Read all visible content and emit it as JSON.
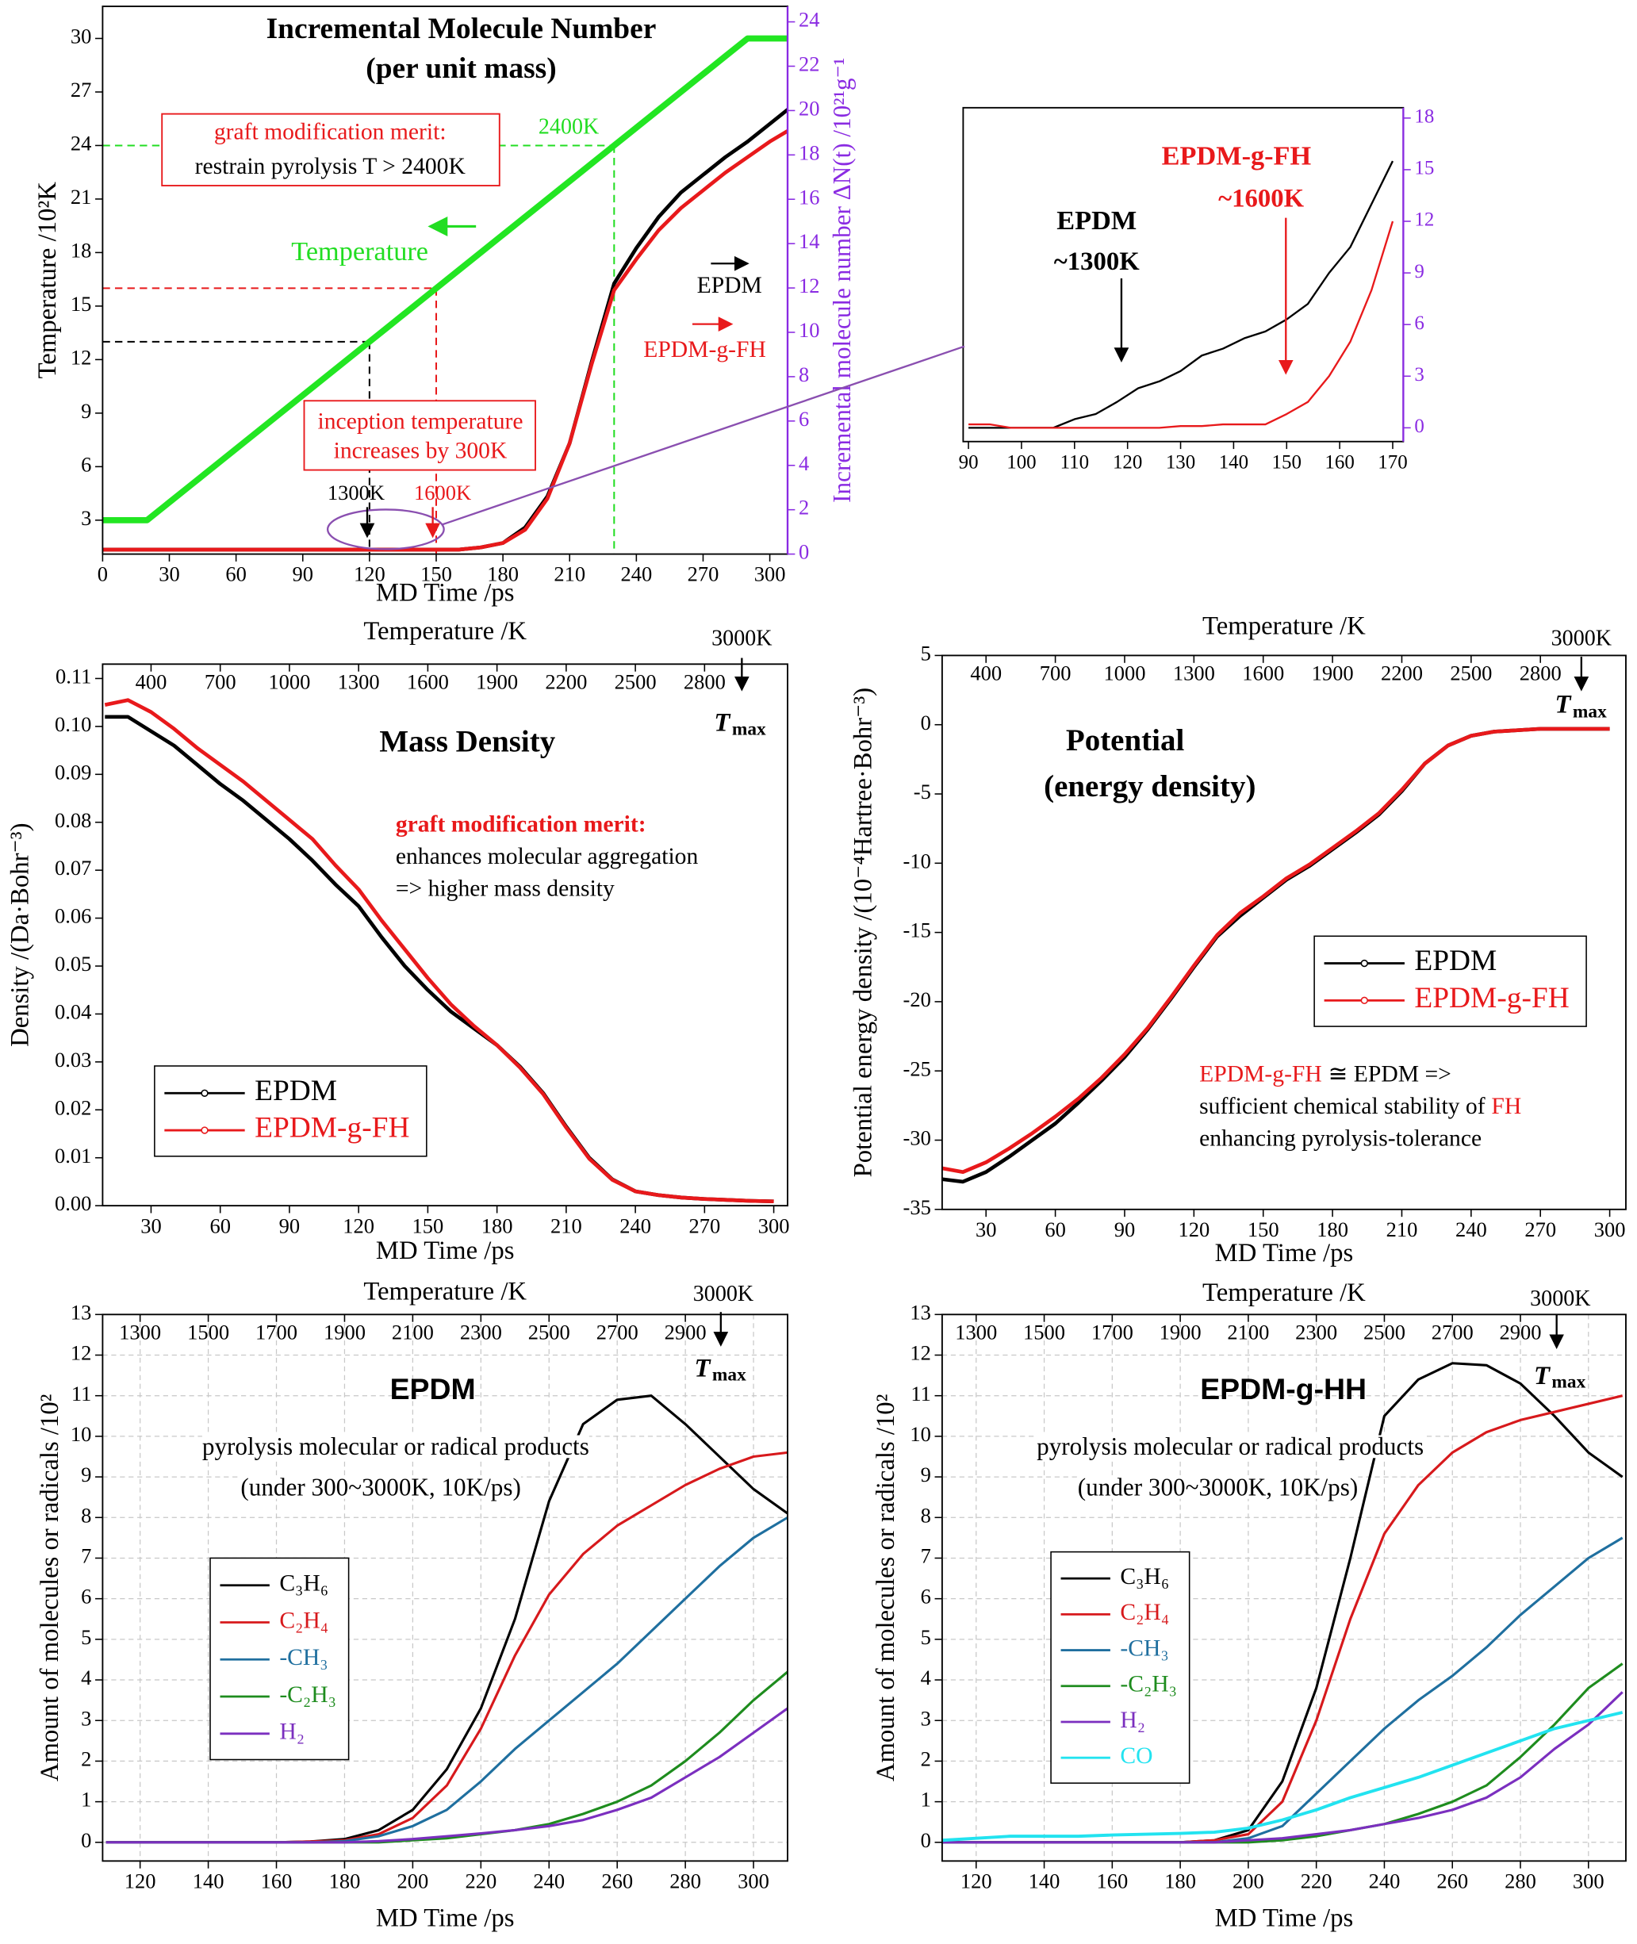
{
  "chart_data": [
    {
      "type": "line",
      "title": "Incremental Molecule Number",
      "subtitle": "(per unit mass)",
      "xlabel": "MD Time /ps",
      "ylabel": "Temperature /10²K",
      "y2label": "Incremental molecule number ΔN(t) /10²¹g⁻¹",
      "y2_color": "#8a2be2",
      "x": [
        0,
        10,
        20,
        30,
        40,
        50,
        60,
        70,
        80,
        90,
        100,
        110,
        120,
        130,
        140,
        150,
        160,
        170,
        180,
        190,
        200,
        210,
        220,
        230,
        240,
        250,
        260,
        270,
        280,
        290,
        300,
        310
      ],
      "xlim": [
        0,
        308
      ],
      "xticks": [
        0,
        30,
        60,
        90,
        120,
        150,
        180,
        210,
        240,
        270,
        300
      ],
      "ylim": [
        1.1,
        31.8
      ],
      "yticks": [
        3,
        6,
        9,
        12,
        15,
        18,
        21,
        24,
        27,
        30
      ],
      "y2lim": [
        0,
        24.7
      ],
      "y2ticks": [
        0,
        2,
        4,
        6,
        8,
        10,
        12,
        14,
        16,
        18,
        20,
        22,
        24
      ],
      "series": [
        {
          "name": "Temperature",
          "color": "#22e622",
          "width": 5,
          "values": [
            3,
            3,
            3,
            4,
            5,
            6,
            7,
            8,
            9,
            10,
            11,
            12,
            13,
            14,
            15,
            16,
            17,
            18,
            19,
            20,
            21,
            22,
            23,
            24,
            25,
            26,
            27,
            28,
            29,
            30,
            30,
            30
          ]
        },
        {
          "name": "EPDM",
          "color": "#000000",
          "width": 3,
          "axis": "y2",
          "values": [
            0.2,
            0.2,
            0.2,
            0.2,
            0.2,
            0.2,
            0.2,
            0.2,
            0.2,
            0.2,
            0.2,
            0.2,
            0.2,
            0.2,
            0.2,
            0.2,
            0.2,
            0.3,
            0.5,
            1.2,
            2.6,
            5.0,
            8.7,
            12.2,
            13.8,
            15.2,
            16.3,
            17.1,
            17.9,
            18.6,
            19.4,
            20.2
          ]
        },
        {
          "name": "EPDM-g-FH",
          "color": "#e8191b",
          "width": 3,
          "axis": "y2",
          "values": [
            0.2,
            0.2,
            0.2,
            0.2,
            0.2,
            0.2,
            0.2,
            0.2,
            0.2,
            0.2,
            0.2,
            0.2,
            0.2,
            0.2,
            0.2,
            0.2,
            0.2,
            0.3,
            0.5,
            1.1,
            2.5,
            5.0,
            8.6,
            11.9,
            13.3,
            14.6,
            15.6,
            16.4,
            17.2,
            17.9,
            18.6,
            19.2
          ]
        }
      ],
      "reference_lines": [
        {
          "x": 230,
          "y": 24,
          "color": "#22dd22"
        },
        {
          "x": 120,
          "y": 13,
          "color": "#000000"
        },
        {
          "x": 150,
          "y": 16,
          "color": "#e8191b"
        }
      ],
      "annotations": [
        "graft modification merit:",
        "restrain pyrolysis T > 2400K",
        "2400K",
        "Temperature",
        "EPDM",
        "EPDM-g-FH",
        "inception temperature",
        "increases by 300K",
        "1300K",
        "1600K"
      ]
    },
    {
      "type": "line",
      "y2_color": "#8a2be2",
      "x": [
        90,
        94,
        98,
        102,
        106,
        110,
        114,
        118,
        122,
        126,
        130,
        134,
        138,
        142,
        146,
        150,
        154,
        158,
        162,
        166,
        170
      ],
      "xlim": [
        89,
        172
      ],
      "xticks": [
        90,
        100,
        110,
        120,
        130,
        140,
        150,
        160,
        170
      ],
      "y2lim": [
        -0.8,
        18.6
      ],
      "y2ticks": [
        0,
        3,
        6,
        9,
        12,
        15,
        18
      ],
      "series": [
        {
          "name": "EPDM",
          "color": "#000000",
          "width": 1.5,
          "axis": "y2",
          "values": [
            0,
            0,
            0,
            0,
            0,
            0.5,
            0.8,
            1.5,
            2.3,
            2.7,
            3.3,
            4.2,
            4.6,
            5.2,
            5.6,
            6.3,
            7.2,
            9.0,
            10.5,
            13.0,
            15.5
          ]
        },
        {
          "name": "EPDM-g-FH",
          "color": "#e8191b",
          "width": 1.5,
          "axis": "y2",
          "values": [
            0.2,
            0.2,
            0,
            0,
            0,
            0,
            0,
            0,
            0,
            0,
            0.1,
            0.1,
            0.2,
            0.2,
            0.2,
            0.8,
            1.5,
            3.0,
            5.0,
            8.0,
            12.0
          ]
        }
      ],
      "annotations": [
        "EPDM",
        "~1300K",
        "EPDM-g-FH",
        "~1600K"
      ]
    },
    {
      "type": "line",
      "title": "Mass Density",
      "xlabel": "MD Time /ps",
      "x2label": "Temperature /K",
      "ylabel": "Density /(Da·Bohr⁻³)",
      "x": [
        10,
        20,
        30,
        40,
        50,
        60,
        70,
        80,
        90,
        100,
        110,
        120,
        130,
        140,
        150,
        160,
        170,
        180,
        190,
        200,
        210,
        220,
        230,
        240,
        250,
        260,
        270,
        280,
        290,
        300
      ],
      "xlim": [
        9,
        306
      ],
      "xticks": [
        30,
        60,
        90,
        120,
        150,
        180,
        210,
        240,
        270,
        300
      ],
      "x2lim": [
        190,
        3160
      ],
      "x2ticks": [
        400,
        700,
        1000,
        1300,
        1600,
        1900,
        2200,
        2500,
        2800
      ],
      "ylim": [
        0,
        0.113
      ],
      "yticks": [
        {
          "value": 0,
          "label": "0.00"
        },
        0.01,
        0.02,
        0.03,
        0.04,
        0.05,
        0.06,
        0.07,
        0.08,
        0.09,
        {
          "value": 0.1,
          "label": "0.10"
        },
        0.11
      ],
      "legend": "lower left",
      "marker": "circle",
      "series": [
        {
          "name": "EPDM",
          "color": "#000000",
          "width": 3,
          "values": [
            0.102,
            0.102,
            0.099,
            0.096,
            0.092,
            0.088,
            0.0845,
            0.0805,
            0.0765,
            0.072,
            0.067,
            0.0625,
            0.056,
            0.05,
            0.045,
            0.0405,
            0.037,
            0.0335,
            0.029,
            0.0235,
            0.0165,
            0.01,
            0.0055,
            0.003,
            0.0022,
            0.0017,
            0.0014,
            0.0012,
            0.001,
            0.0009
          ]
        },
        {
          "name": "EPDM-g-FH",
          "color": "#e8191b",
          "width": 3,
          "values": [
            0.1045,
            0.1055,
            0.103,
            0.0995,
            0.0955,
            0.092,
            0.0885,
            0.0845,
            0.0805,
            0.0765,
            0.071,
            0.066,
            0.0595,
            0.0535,
            0.0475,
            0.042,
            0.0375,
            0.0335,
            0.0288,
            0.0233,
            0.0163,
            0.0098,
            0.0054,
            0.003,
            0.0022,
            0.0017,
            0.0014,
            0.0012,
            0.001,
            0.0009
          ]
        }
      ],
      "annotations": [
        "graft modification merit:",
        "enhances molecular aggregation",
        "=> higher mass density",
        "3000K",
        "T",
        "max"
      ]
    },
    {
      "type": "line",
      "title": "Potential",
      "subtitle": "(energy density)",
      "xlabel": "MD Time /ps",
      "x2label": "Temperature /K",
      "ylabel": "Potential energy density /(10⁻⁴Hartree·Bohr⁻³)",
      "x": [
        10,
        20,
        30,
        40,
        50,
        60,
        70,
        80,
        90,
        100,
        110,
        120,
        130,
        140,
        150,
        160,
        170,
        180,
        190,
        200,
        210,
        220,
        230,
        240,
        250,
        260,
        270,
        280,
        290,
        300
      ],
      "xlim": [
        11,
        307
      ],
      "xticks": [
        30,
        60,
        90,
        120,
        150,
        180,
        210,
        240,
        270,
        300
      ],
      "x2lim": [
        210,
        3170
      ],
      "x2ticks": [
        400,
        700,
        1000,
        1300,
        1600,
        1900,
        2200,
        2500,
        2800
      ],
      "ylim": [
        -35,
        5
      ],
      "yticks": [
        5,
        0,
        -5,
        -10,
        -15,
        -20,
        -25,
        -30,
        -35
      ],
      "legend": "center right",
      "marker": "circle",
      "series": [
        {
          "name": "EPDM",
          "color": "#000000",
          "width": 3,
          "values": [
            -32.8,
            -33.0,
            -32.3,
            -31.2,
            -30.0,
            -28.8,
            -27.3,
            -25.7,
            -24.0,
            -22.0,
            -19.8,
            -17.5,
            -15.3,
            -13.8,
            -12.5,
            -11.2,
            -10.2,
            -9.0,
            -7.8,
            -6.5,
            -4.8,
            -2.8,
            -1.5,
            -0.8,
            -0.5,
            -0.4,
            -0.3,
            -0.3,
            -0.3,
            -0.3
          ]
        },
        {
          "name": "EPDM-g-FH",
          "color": "#e8191b",
          "width": 3,
          "values": [
            -32.0,
            -32.3,
            -31.6,
            -30.6,
            -29.5,
            -28.3,
            -27.0,
            -25.5,
            -23.8,
            -21.9,
            -19.7,
            -17.4,
            -15.2,
            -13.6,
            -12.4,
            -11.1,
            -10.1,
            -8.9,
            -7.7,
            -6.4,
            -4.7,
            -2.8,
            -1.5,
            -0.8,
            -0.5,
            -0.4,
            -0.3,
            -0.3,
            -0.3,
            -0.3
          ]
        }
      ],
      "annotations": [
        "EPDM-g-FH",
        "≅ EPDM =>",
        "sufficient chemical stability of",
        "FH",
        "enhancing pyrolysis-tolerance",
        "3000K",
        "T",
        "max"
      ]
    },
    {
      "type": "line",
      "title": "EPDM",
      "xlabel": "MD Time /ps",
      "x2label": "Temperature /K",
      "ylabel": "Amount of molecules or radicals /10²",
      "x": [
        110,
        120,
        130,
        140,
        150,
        160,
        170,
        180,
        190,
        200,
        210,
        220,
        230,
        240,
        250,
        260,
        270,
        280,
        290,
        300,
        310
      ],
      "xlim": [
        109,
        310
      ],
      "xticks": [
        120,
        140,
        160,
        180,
        200,
        220,
        240,
        260,
        280,
        300
      ],
      "x2lim": [
        1190,
        3200
      ],
      "x2ticks": [
        1300,
        1500,
        1700,
        1900,
        2100,
        2300,
        2500,
        2700,
        2900
      ],
      "ylim": [
        -0.46,
        13
      ],
      "yticks": [
        0,
        1,
        2,
        3,
        4,
        5,
        6,
        7,
        8,
        9,
        10,
        11,
        12,
        13
      ],
      "grid": true,
      "legend": "center left",
      "series": [
        {
          "name": "C₃H₆",
          "color": "#000000",
          "width": 2,
          "values": [
            0,
            0,
            0,
            0,
            0,
            0,
            0.02,
            0.08,
            0.3,
            0.8,
            1.8,
            3.3,
            5.5,
            8.4,
            10.3,
            10.9,
            11.0,
            10.3,
            9.5,
            8.7,
            8.1
          ]
        },
        {
          "name": "C₂H₄",
          "color": "#d7191c",
          "width": 2,
          "values": [
            0,
            0,
            0,
            0,
            0,
            0,
            0.02,
            0.05,
            0.2,
            0.6,
            1.4,
            2.8,
            4.6,
            6.1,
            7.1,
            7.8,
            8.3,
            8.8,
            9.2,
            9.5,
            9.6
          ]
        },
        {
          "name": "-CH₃",
          "color": "#1f6f9f",
          "width": 2,
          "values": [
            0,
            0,
            0,
            0,
            0,
            0,
            0,
            0.03,
            0.15,
            0.4,
            0.8,
            1.5,
            2.3,
            3.0,
            3.7,
            4.4,
            5.2,
            6.0,
            6.8,
            7.5,
            8.0
          ]
        },
        {
          "name": "-C₂H₃",
          "color": "#1e8c1e",
          "width": 2,
          "values": [
            0,
            0,
            0,
            0,
            0,
            0,
            0,
            0,
            0,
            0.05,
            0.1,
            0.2,
            0.3,
            0.45,
            0.7,
            1.0,
            1.4,
            2.0,
            2.7,
            3.5,
            4.2
          ]
        },
        {
          "name": "H₂",
          "color": "#7b2fbf",
          "width": 2,
          "values": [
            0,
            0,
            0,
            0,
            0,
            0,
            0,
            0,
            0.03,
            0.08,
            0.15,
            0.22,
            0.3,
            0.4,
            0.55,
            0.8,
            1.1,
            1.6,
            2.1,
            2.7,
            3.3
          ]
        }
      ],
      "annotations": [
        "pyrolysis molecular or radical products",
        "(under 300~3000K, 10K/ps)",
        "3000K",
        "T",
        "max"
      ]
    },
    {
      "type": "line",
      "title": "EPDM-g-HH",
      "xlabel": "MD Time /ps",
      "x2label": "Temperature /K",
      "ylabel": "Amount of molecules or radicals /10²",
      "x": [
        110,
        120,
        130,
        140,
        150,
        160,
        170,
        180,
        190,
        200,
        210,
        220,
        230,
        240,
        250,
        260,
        270,
        280,
        290,
        300,
        310
      ],
      "xlim": [
        110,
        311
      ],
      "xticks": [
        120,
        140,
        160,
        180,
        200,
        220,
        240,
        260,
        280,
        300
      ],
      "x2lim": [
        1200,
        3210
      ],
      "x2ticks": [
        1300,
        1500,
        1700,
        1900,
        2100,
        2300,
        2500,
        2700,
        2900
      ],
      "ylim": [
        -0.46,
        13
      ],
      "yticks": [
        0,
        1,
        2,
        3,
        4,
        5,
        6,
        7,
        8,
        9,
        10,
        11,
        12,
        13
      ],
      "grid": true,
      "legend": "center left",
      "series": [
        {
          "name": "C₃H₆",
          "color": "#000000",
          "width": 2,
          "values": [
            0,
            0,
            0,
            0,
            0,
            0,
            0,
            0,
            0.05,
            0.3,
            1.5,
            3.8,
            7.0,
            10.5,
            11.4,
            11.8,
            11.75,
            11.3,
            10.5,
            9.6,
            9.0
          ]
        },
        {
          "name": "C₂H₄",
          "color": "#d7191c",
          "width": 2,
          "values": [
            0,
            0,
            0,
            0,
            0,
            0,
            0,
            0,
            0.05,
            0.2,
            1.0,
            3.0,
            5.5,
            7.6,
            8.8,
            9.6,
            10.1,
            10.4,
            10.6,
            10.8,
            11.0
          ]
        },
        {
          "name": "-CH₃",
          "color": "#1f6f9f",
          "width": 2,
          "values": [
            0,
            0,
            0,
            0,
            0,
            0,
            0,
            0,
            0,
            0.1,
            0.4,
            1.2,
            2.0,
            2.8,
            3.5,
            4.1,
            4.8,
            5.6,
            6.3,
            7.0,
            7.5
          ]
        },
        {
          "name": "-C₂H₃",
          "color": "#1e8c1e",
          "width": 2,
          "values": [
            0,
            0,
            0,
            0,
            0,
            0,
            0,
            0,
            0,
            0,
            0.05,
            0.15,
            0.3,
            0.45,
            0.7,
            1.0,
            1.4,
            2.1,
            2.9,
            3.8,
            4.4
          ]
        },
        {
          "name": "H₂",
          "color": "#7b2fbf",
          "width": 2,
          "values": [
            0,
            0,
            0,
            0,
            0,
            0,
            0,
            0,
            0,
            0.05,
            0.1,
            0.2,
            0.3,
            0.45,
            0.6,
            0.8,
            1.1,
            1.6,
            2.3,
            2.9,
            3.7
          ]
        },
        {
          "name": "CO",
          "color": "#22e3f0",
          "width": 2.5,
          "values": [
            0.05,
            0.1,
            0.15,
            0.15,
            0.15,
            0.18,
            0.2,
            0.22,
            0.25,
            0.35,
            0.55,
            0.8,
            1.1,
            1.35,
            1.6,
            1.9,
            2.2,
            2.5,
            2.8,
            3.0,
            3.2
          ]
        }
      ],
      "annotations": [
        "pyrolysis molecular or radical products",
        "(under 300~3000K, 10K/ps)",
        "3000K",
        "T",
        "max"
      ]
    }
  ]
}
